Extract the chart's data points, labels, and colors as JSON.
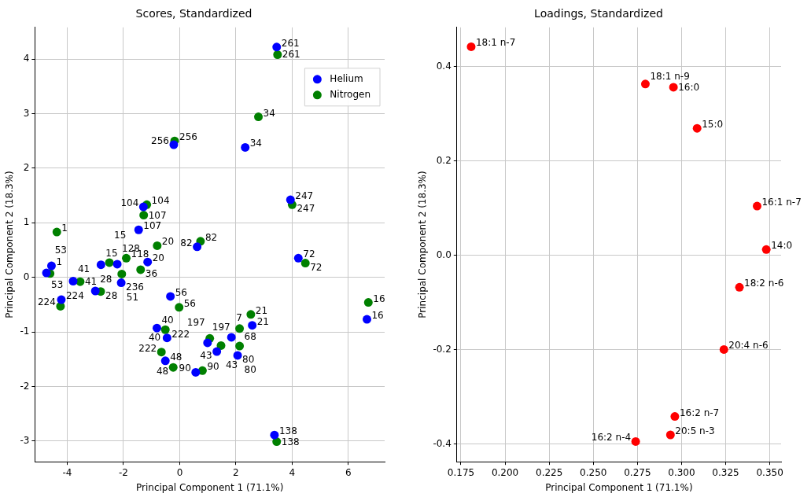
{
  "chart_data": [
    {
      "type": "scatter",
      "title": "Scores, Standardized",
      "xlabel": "Principal Component 1 (71.1%)",
      "ylabel": "Principal Component 2 (18.3%)",
      "xlim": [
        -5.15,
        7.29
      ],
      "ylim": [
        -3.38,
        4.58
      ],
      "xticks": [
        -4,
        -2,
        0,
        2,
        4,
        6
      ],
      "yticks": [
        -3,
        -2,
        -1,
        0,
        1,
        2,
        3,
        4
      ],
      "grid": true,
      "legend": "top right",
      "marker": "circle",
      "series": [
        {
          "name": "Helium",
          "color": "#0000ff",
          "x": [
            3.45,
            2.33,
            -0.21,
            3.94,
            -1.29,
            -1.46,
            -4.56,
            -1.14,
            0.62,
            4.22,
            -4.74,
            -3.79,
            -4.21,
            -3.0,
            -2.08,
            -2.8,
            -2.22,
            -0.33,
            -0.81,
            -0.45,
            -0.51,
            0.57,
            0.99,
            1.32,
            1.84,
            2.58,
            2.06,
            6.66,
            3.37
          ],
          "values": [
            4.22,
            2.38,
            2.43,
            1.42,
            1.29,
            0.87,
            0.21,
            0.28,
            0.56,
            0.35,
            0.08,
            -0.07,
            -0.41,
            -0.25,
            -0.1,
            0.23,
            0.24,
            -0.35,
            -0.93,
            -1.11,
            -1.53,
            -1.74,
            -1.2,
            -1.36,
            -1.1,
            -0.88,
            -1.43,
            -0.77,
            -2.89
          ]
        },
        {
          "name": "Nitrogen",
          "color": "#008000",
          "x": [
            3.48,
            2.8,
            -0.18,
            4.0,
            -1.17,
            -1.28,
            -4.37,
            -0.8,
            0.74,
            4.47,
            -4.61,
            -3.54,
            -4.24,
            -2.81,
            -2.06,
            -1.39,
            -2.5,
            -1.9,
            -0.02,
            -0.51,
            -0.65,
            -0.23,
            0.81,
            1.07,
            1.47,
            2.13,
            2.53,
            2.13,
            6.71,
            3.45
          ],
          "values": [
            4.08,
            2.94,
            2.5,
            1.33,
            1.33,
            1.14,
            0.83,
            0.58,
            0.66,
            0.26,
            0.07,
            -0.08,
            -0.53,
            -0.26,
            0.06,
            0.14,
            0.27,
            0.35,
            -0.55,
            -0.96,
            -1.37,
            -1.65,
            -1.71,
            -1.12,
            -1.25,
            -0.94,
            -0.68,
            -1.26,
            -0.46,
            -3.01
          ]
        }
      ],
      "annotations": [
        {
          "text": "261",
          "x": 3.45,
          "y": 4.22
        },
        {
          "text": "34",
          "x": 2.33,
          "y": 2.38
        },
        {
          "text": "256",
          "x": -0.21,
          "y": 2.43
        },
        {
          "text": "247",
          "x": 3.94,
          "y": 1.42
        },
        {
          "text": "104",
          "x": -1.29,
          "y": 1.29
        },
        {
          "text": "107",
          "x": -1.46,
          "y": 0.87
        },
        {
          "text": "1",
          "x": -4.56,
          "y": 0.21
        },
        {
          "text": "20",
          "x": -1.14,
          "y": 0.28
        },
        {
          "text": "82",
          "x": 0.62,
          "y": 0.56
        },
        {
          "text": "72",
          "x": 4.22,
          "y": 0.35
        },
        {
          "text": "53",
          "x": -4.74,
          "y": 0.08
        },
        {
          "text": "41",
          "x": -3.79,
          "y": -0.07
        },
        {
          "text": "224",
          "x": -4.21,
          "y": -0.41
        },
        {
          "text": "28",
          "x": -3.0,
          "y": -0.25
        },
        {
          "text": "236",
          "x": -2.08,
          "y": -0.1
        },
        {
          "text": "15",
          "x": -2.8,
          "y": 0.23
        },
        {
          "text": "128",
          "x": -2.22,
          "y": 0.24
        },
        {
          "text": "56",
          "x": -0.33,
          "y": -0.35
        },
        {
          "text": "40",
          "x": -0.81,
          "y": -0.93
        },
        {
          "text": "222",
          "x": -0.45,
          "y": -1.11
        },
        {
          "text": "48",
          "x": -0.51,
          "y": -1.53
        },
        {
          "text": "90",
          "x": 0.57,
          "y": -1.74
        },
        {
          "text": "197",
          "x": 0.99,
          "y": -1.2
        },
        {
          "text": "43",
          "x": 1.32,
          "y": -1.36
        },
        {
          "text": "7",
          "x": 1.84,
          "y": -1.1
        },
        {
          "text": "21",
          "x": 2.58,
          "y": -0.88
        },
        {
          "text": "80",
          "x": 2.06,
          "y": -1.43
        },
        {
          "text": "16",
          "x": 6.66,
          "y": -0.77
        },
        {
          "text": "138",
          "x": 3.37,
          "y": -2.89
        },
        {
          "text": "261",
          "x": 3.48,
          "y": 4.08
        },
        {
          "text": "34",
          "x": 2.8,
          "y": 2.94
        },
        {
          "text": "256",
          "x": -0.18,
          "y": 2.5
        },
        {
          "text": "247",
          "x": 4.0,
          "y": 1.33
        },
        {
          "text": "104",
          "x": -1.17,
          "y": 1.33
        },
        {
          "text": "107",
          "x": -1.28,
          "y": 1.14
        },
        {
          "text": "1",
          "x": -4.37,
          "y": 0.83
        },
        {
          "text": "20",
          "x": -0.8,
          "y": 0.58
        },
        {
          "text": "82",
          "x": 0.74,
          "y": 0.66
        },
        {
          "text": "72",
          "x": 4.47,
          "y": 0.26
        },
        {
          "text": "53",
          "x": -4.61,
          "y": 0.07
        },
        {
          "text": "41",
          "x": -3.54,
          "y": -0.08
        },
        {
          "text": "224",
          "x": -4.24,
          "y": -0.53
        },
        {
          "text": "28",
          "x": -2.81,
          "y": -0.26
        },
        {
          "text": "51",
          "x": -2.06,
          "y": 0.06
        },
        {
          "text": "36",
          "x": -1.39,
          "y": 0.14
        },
        {
          "text": "15",
          "x": -2.5,
          "y": 0.27
        },
        {
          "text": "118",
          "x": -1.9,
          "y": 0.35
        },
        {
          "text": "56",
          "x": -0.02,
          "y": -0.55
        },
        {
          "text": "40",
          "x": -0.51,
          "y": -0.96
        },
        {
          "text": "222",
          "x": -0.65,
          "y": -1.37
        },
        {
          "text": "48",
          "x": -0.23,
          "y": -1.65
        },
        {
          "text": "90",
          "x": 0.81,
          "y": -1.71
        },
        {
          "text": "197",
          "x": 1.07,
          "y": -1.12
        },
        {
          "text": "43",
          "x": 1.47,
          "y": -1.25
        },
        {
          "text": "68",
          "x": 2.13,
          "y": -0.94
        },
        {
          "text": "21",
          "x": 2.53,
          "y": -0.68
        },
        {
          "text": "80",
          "x": 2.13,
          "y": -1.26
        },
        {
          "text": "16",
          "x": 6.71,
          "y": -0.46
        },
        {
          "text": "138",
          "x": 3.45,
          "y": -3.01
        }
      ]
    },
    {
      "type": "scatter",
      "title": "Loadings, Standardized",
      "xlabel": "Principal Component 1 (71.1%)",
      "ylabel": "Principal Component 2 (18.3%)",
      "xlim": [
        0.1727,
        0.3564
      ],
      "ylim": [
        -0.438,
        0.483
      ],
      "xticks": [
        {
          "value": 0.175,
          "label": "0.175"
        },
        {
          "value": 0.2,
          "label": "0.200"
        },
        {
          "value": 0.225,
          "label": "0.225"
        },
        {
          "value": 0.25,
          "label": "0.250"
        },
        {
          "value": 0.275,
          "label": "0.275"
        },
        {
          "value": 0.3,
          "label": "0.300"
        },
        {
          "value": 0.325,
          "label": "0.325"
        },
        {
          "value": 0.35,
          "label": "0.350"
        }
      ],
      "yticks": [
        {
          "value": -0.4,
          "label": "-0.4"
        },
        {
          "value": -0.2,
          "label": "-0.2"
        },
        {
          "value": 0,
          "label": "0.0"
        },
        {
          "value": 0.2,
          "label": "0.2"
        },
        {
          "value": 0.4,
          "label": "0.4"
        }
      ],
      "grid": true,
      "marker": "circle",
      "series": [
        {
          "color": "#ff0000",
          "x": [
            0.1808,
            0.2795,
            0.2954,
            0.3088,
            0.3428,
            0.348,
            0.3328,
            0.324,
            0.2962,
            0.2937,
            0.274
          ],
          "values": [
            0.442,
            0.363,
            0.356,
            0.269,
            0.104,
            0.012,
            -0.068,
            -0.2,
            -0.342,
            -0.381,
            -0.395
          ]
        }
      ],
      "annotations": [
        {
          "text": "18:1 n-7",
          "x": 0.1808,
          "y": 0.442
        },
        {
          "text": "18:1 n-9",
          "x": 0.2795,
          "y": 0.363
        },
        {
          "text": "16:0",
          "x": 0.2954,
          "y": 0.356
        },
        {
          "text": "15:0",
          "x": 0.3088,
          "y": 0.269
        },
        {
          "text": "16:1 n-7",
          "x": 0.3428,
          "y": 0.104
        },
        {
          "text": "14:0",
          "x": 0.348,
          "y": 0.012
        },
        {
          "text": "18:2 n-6",
          "x": 0.3328,
          "y": -0.068
        },
        {
          "text": "20:4 n-6",
          "x": 0.324,
          "y": -0.2
        },
        {
          "text": "16:2 n-7",
          "x": 0.2962,
          "y": -0.342
        },
        {
          "text": "20:5 n-3",
          "x": 0.2937,
          "y": -0.381
        },
        {
          "text": "16:2 n-4",
          "x": 0.274,
          "y": -0.395
        }
      ]
    }
  ]
}
